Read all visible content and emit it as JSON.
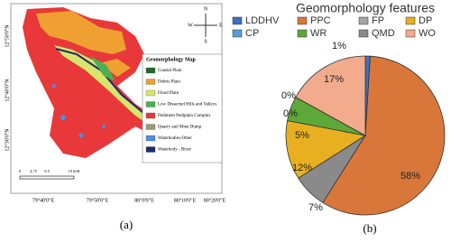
{
  "map": {
    "title": "Geomorphology Map",
    "legend": [
      {
        "label": "Coastal Plain",
        "color": "#1f6b2a"
      },
      {
        "label": "Debris Plain",
        "color": "#f0a030"
      },
      {
        "label": "Flood Plain",
        "color": "#d8e46a"
      },
      {
        "label": "Low Dissected Hills and Valleys",
        "color": "#4caf50"
      },
      {
        "label": "Pediment Pediplain Complex",
        "color": "#e8383a"
      },
      {
        "label": "Quarry and Mine Dump",
        "color": "#9c9a7a"
      },
      {
        "label": "Waterbodies-Other",
        "color": "#4a8fe0"
      },
      {
        "label": "Waterbody - River",
        "color": "#1a2a6c"
      }
    ],
    "lat_labels": [
      "12°50'0\"N",
      "12°40'0\"N",
      "12°30'0\"N"
    ],
    "lon_labels": [
      "79°40'0\"E",
      "79°50'0\"E",
      "80°0'0\"E",
      "80°10'0\"E",
      "80°20'0\"E"
    ],
    "scale_labels": [
      "0",
      "4.75",
      "9.5",
      "19 KM"
    ],
    "compass": [
      "N",
      "E",
      "S",
      "W"
    ]
  },
  "chart_data": {
    "type": "pie",
    "title": "Geomorphology features",
    "categories": [
      "LDDHV",
      "PPC",
      "FP",
      "DP",
      "CP",
      "WR",
      "QMD",
      "WO"
    ],
    "values": [
      1,
      58,
      0,
      12,
      0,
      5,
      7,
      17
    ],
    "value_labels": [
      "1%",
      "58%",
      "0%",
      "12%",
      "0%",
      "5%",
      "7%",
      "17%"
    ],
    "colors": [
      "#3f6fc0",
      "#d9773a",
      "#a5a5a5",
      "#e8b020",
      "#5b9bd5",
      "#5ea83a",
      "#8a8a8a",
      "#f2ab8c"
    ]
  },
  "captions": [
    "(a)",
    "(b)"
  ]
}
